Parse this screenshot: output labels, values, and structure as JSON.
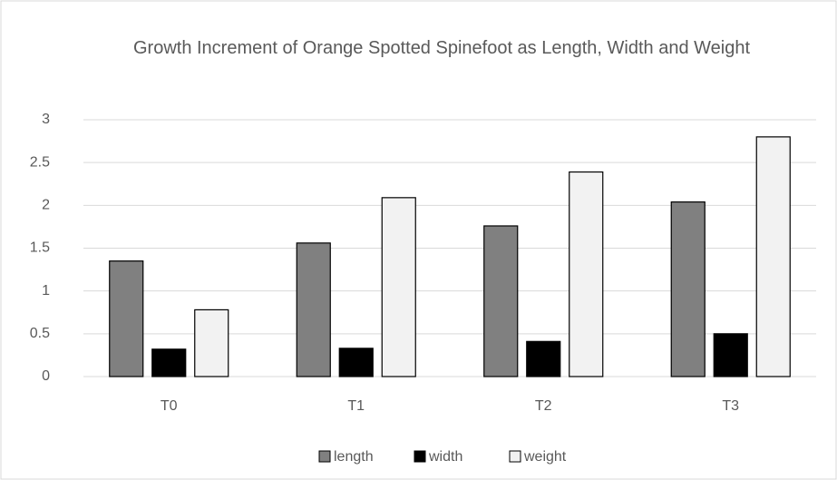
{
  "chart_data": {
    "type": "bar",
    "title": "Growth Increment of Orange Spotted Spinefoot as Length, Width and Weight",
    "categories": [
      "T0",
      "T1",
      "T2",
      "T3"
    ],
    "series": [
      {
        "name": "length",
        "color": "#808080",
        "values": [
          1.35,
          1.56,
          1.76,
          2.04
        ]
      },
      {
        "name": "width",
        "color": "#000000",
        "values": [
          0.32,
          0.33,
          0.41,
          0.5
        ]
      },
      {
        "name": "weight",
        "color": "#f2f2f2",
        "values": [
          0.78,
          2.09,
          2.39,
          2.8
        ]
      }
    ],
    "ylim": [
      0,
      3
    ],
    "yticks": [
      0,
      0.5,
      1,
      1.5,
      2,
      2.5,
      3
    ],
    "grid": true,
    "legend": "bottom"
  }
}
